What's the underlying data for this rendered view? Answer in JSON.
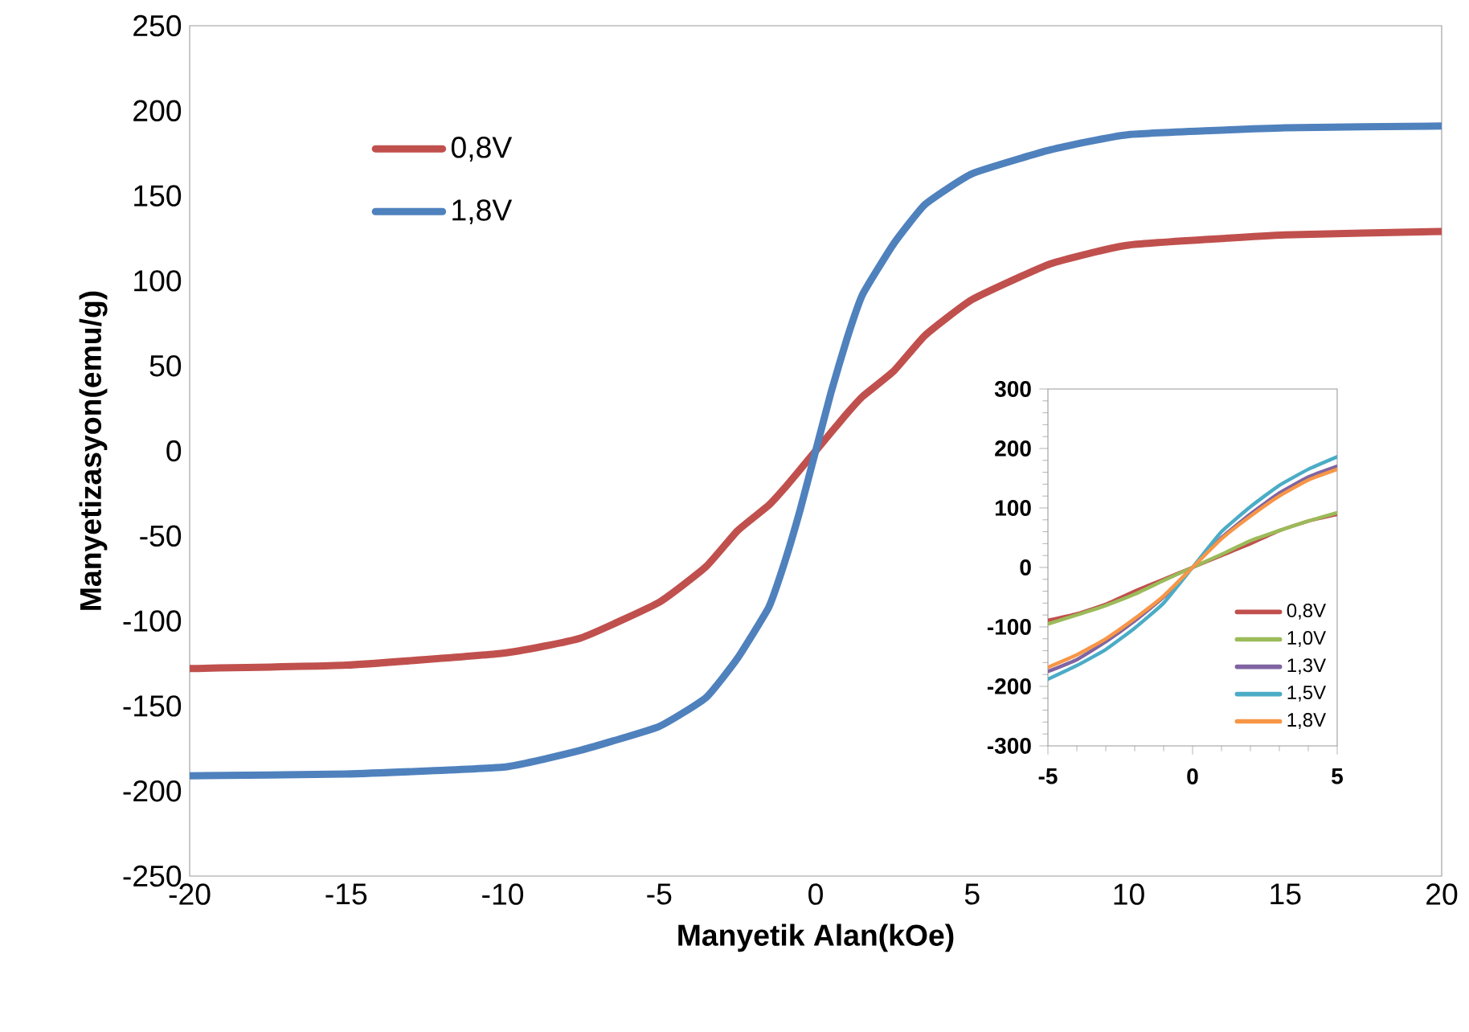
{
  "chart_data": [
    {
      "type": "line",
      "xlabel": "Manyetik Alan(kOe)",
      "ylabel": "Manyetizasyon(emu/g)",
      "xlim": [
        -20,
        20
      ],
      "ylim": [
        -250,
        250
      ],
      "xticks": [
        -20,
        -15,
        -10,
        -5,
        0,
        5,
        10,
        15,
        20
      ],
      "yticks": [
        -250,
        -200,
        -150,
        -100,
        -50,
        0,
        50,
        100,
        150,
        200,
        250
      ],
      "legend": "top left",
      "x": [
        -20,
        -15,
        -10,
        -7.5,
        -5,
        -3.5,
        -2.5,
        -1.5,
        -1,
        -0.5,
        0,
        0.5,
        1,
        1.5,
        2.5,
        3.5,
        5,
        7.5,
        10,
        15,
        20
      ],
      "series": [
        {
          "name": "0,8V",
          "color": "#c0504d",
          "values": [
            -128,
            -126,
            -119,
            -110,
            -89,
            -68,
            -47,
            -32,
            -22,
            -11,
            0,
            11,
            22,
            32,
            47,
            68,
            89,
            110,
            121,
            127,
            129
          ]
        },
        {
          "name": "1,8V",
          "color": "#4f81bd",
          "values": [
            -191,
            -190,
            -186,
            -176,
            -162,
            -145,
            -122,
            -92,
            -66,
            -35,
            0,
            35,
            66,
            92,
            122,
            145,
            163,
            177,
            186,
            190,
            191
          ]
        }
      ]
    },
    {
      "type": "line",
      "xlim": [
        -5,
        5
      ],
      "ylim": [
        -300,
        300
      ],
      "xticks": [
        -5,
        0,
        5
      ],
      "yticks": [
        -300,
        -200,
        -100,
        0,
        100,
        200,
        300
      ],
      "legend": "bottom right",
      "x": [
        -5,
        -4,
        -3,
        -2,
        -1,
        0,
        1,
        2,
        3,
        4,
        5
      ],
      "series": [
        {
          "name": "0,8V",
          "color": "#c0504d",
          "values": [
            -89,
            -78,
            -62,
            -40,
            -20,
            0,
            20,
            40,
            62,
            78,
            89
          ]
        },
        {
          "name": "1,0V",
          "color": "#9bbb59",
          "values": [
            -95,
            -80,
            -64,
            -45,
            -22,
            0,
            22,
            45,
            62,
            78,
            92
          ]
        },
        {
          "name": "1,3V",
          "color": "#8064a2",
          "values": [
            -175,
            -155,
            -125,
            -90,
            -50,
            0,
            50,
            90,
            125,
            152,
            170
          ]
        },
        {
          "name": "1,5V",
          "color": "#4bacc6",
          "values": [
            -188,
            -165,
            -138,
            -102,
            -60,
            0,
            60,
            102,
            138,
            165,
            186
          ]
        },
        {
          "name": "1,8V",
          "color": "#f79646",
          "values": [
            -168,
            -147,
            -120,
            -86,
            -48,
            0,
            48,
            86,
            120,
            147,
            165
          ]
        }
      ]
    }
  ]
}
